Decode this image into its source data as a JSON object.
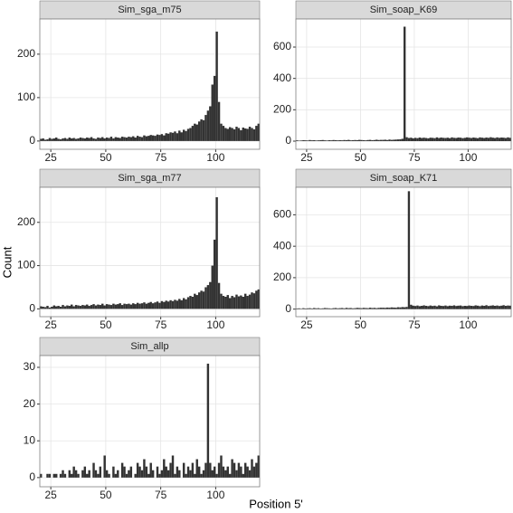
{
  "chart_data": {
    "type": "histogram",
    "xlabel": "Position 5'",
    "ylabel": "Count",
    "bins": [
      20,
      21,
      22,
      23,
      24,
      25,
      26,
      27,
      28,
      29,
      30,
      31,
      32,
      33,
      34,
      35,
      36,
      37,
      38,
      39,
      40,
      41,
      42,
      43,
      44,
      45,
      46,
      47,
      48,
      49,
      50,
      51,
      52,
      53,
      54,
      55,
      56,
      57,
      58,
      59,
      60,
      61,
      62,
      63,
      64,
      65,
      66,
      67,
      68,
      69,
      70,
      71,
      72,
      73,
      74,
      75,
      76,
      77,
      78,
      79,
      80,
      81,
      82,
      83,
      84,
      85,
      86,
      87,
      88,
      89,
      90,
      91,
      92,
      93,
      94,
      95,
      96,
      97,
      98,
      99,
      100,
      101,
      102,
      103,
      104,
      105,
      106,
      107,
      108,
      109,
      110,
      111,
      112,
      113,
      114,
      115,
      116,
      117,
      118,
      119,
      120
    ],
    "xlim": [
      20,
      120
    ],
    "xticks": [
      25,
      50,
      75,
      100
    ],
    "color": "#333333",
    "grid": true,
    "panels": [
      {
        "title": "Sim_sga_m75",
        "ylim": [
          -19,
          281
        ],
        "yticks": [
          0,
          100,
          200
        ],
        "values": [
          5,
          6,
          3,
          4,
          7,
          5,
          6,
          8,
          5,
          4,
          6,
          7,
          5,
          8,
          6,
          7,
          5,
          6,
          8,
          7,
          6,
          8,
          7,
          9,
          6,
          5,
          8,
          7,
          9,
          6,
          8,
          7,
          10,
          6,
          9,
          8,
          7,
          10,
          9,
          8,
          10,
          9,
          11,
          8,
          12,
          10,
          9,
          13,
          11,
          12,
          14,
          13,
          12,
          15,
          14,
          16,
          13,
          18,
          17,
          20,
          19,
          22,
          18,
          24,
          20,
          26,
          23,
          28,
          30,
          35,
          40,
          38,
          45,
          50,
          48,
          60,
          70,
          80,
          130,
          150,
          252,
          90,
          40,
          35,
          30,
          28,
          32,
          30,
          27,
          33,
          30,
          25,
          31,
          29,
          28,
          33,
          30,
          27,
          35,
          40
        ]
      },
      {
        "title": "Sim_soap_K69",
        "ylim": [
          -52,
          779
        ],
        "yticks": [
          0,
          200,
          400,
          600
        ],
        "values": [
          5,
          3,
          4,
          6,
          5,
          4,
          7,
          5,
          6,
          4,
          5,
          6,
          7,
          5,
          4,
          6,
          5,
          7,
          6,
          5,
          6,
          5,
          7,
          6,
          8,
          5,
          6,
          7,
          6,
          8,
          7,
          6,
          5,
          7,
          8,
          6,
          7,
          9,
          7,
          8,
          8,
          9,
          7,
          10,
          8,
          9,
          10,
          11,
          12,
          15,
          730,
          25,
          20,
          22,
          18,
          21,
          19,
          23,
          20,
          22,
          20,
          18,
          22,
          21,
          19,
          24,
          20,
          23,
          21,
          20,
          22,
          19,
          24,
          21,
          20,
          23,
          22,
          19,
          21,
          24,
          22,
          20,
          23,
          21,
          19,
          24,
          22,
          20,
          23,
          21,
          25,
          22,
          20,
          24,
          21,
          23,
          22,
          20,
          24,
          21
        ]
      },
      {
        "title": "Sim_sga_m77",
        "ylim": [
          -18,
          281
        ],
        "yticks": [
          0,
          100,
          200
        ],
        "values": [
          6,
          5,
          4,
          7,
          3,
          5,
          8,
          6,
          7,
          5,
          9,
          6,
          8,
          7,
          10,
          6,
          9,
          8,
          7,
          9,
          8,
          10,
          7,
          9,
          11,
          8,
          10,
          9,
          12,
          8,
          11,
          10,
          9,
          12,
          10,
          11,
          13,
          9,
          12,
          11,
          12,
          10,
          13,
          11,
          14,
          12,
          13,
          15,
          12,
          14,
          16,
          13,
          15,
          17,
          14,
          18,
          16,
          19,
          17,
          20,
          18,
          21,
          19,
          23,
          20,
          25,
          22,
          27,
          30,
          28,
          35,
          32,
          38,
          42,
          40,
          50,
          55,
          62,
          100,
          160,
          258,
          60,
          35,
          30,
          28,
          32,
          25,
          30,
          27,
          33,
          29,
          31,
          28,
          35,
          30,
          33,
          38,
          36,
          42,
          45
        ]
      },
      {
        "title": "Sim_soap_K71",
        "ylim": [
          -48,
          775
        ],
        "yticks": [
          0,
          200,
          400,
          600
        ],
        "values": [
          4,
          5,
          3,
          6,
          4,
          5,
          6,
          4,
          7,
          5,
          6,
          4,
          5,
          7,
          6,
          5,
          4,
          6,
          7,
          5,
          6,
          7,
          5,
          8,
          6,
          7,
          5,
          6,
          8,
          7,
          6,
          8,
          7,
          6,
          9,
          7,
          8,
          6,
          8,
          9,
          9,
          8,
          10,
          9,
          11,
          10,
          9,
          12,
          11,
          13,
          12,
          14,
          750,
          28,
          22,
          20,
          23,
          19,
          21,
          24,
          21,
          19,
          23,
          20,
          22,
          18,
          24,
          21,
          20,
          23,
          19,
          22,
          21,
          24,
          20,
          22,
          23,
          19,
          21,
          20,
          23,
          21,
          20,
          24,
          22,
          19,
          23,
          21,
          25,
          20,
          22,
          24,
          21,
          23,
          20,
          22,
          25,
          21,
          23,
          22
        ]
      },
      {
        "title": "Sim_allp",
        "ylim": [
          -2.5,
          33.2
        ],
        "yticks": [
          0,
          10,
          20,
          30
        ],
        "values": [
          1,
          0,
          0,
          1,
          1,
          0,
          1,
          1,
          0,
          1,
          2,
          1,
          0,
          2,
          1,
          3,
          2,
          1,
          0,
          2,
          3,
          1,
          2,
          0,
          4,
          2,
          1,
          3,
          0,
          6,
          2,
          1,
          0,
          3,
          1,
          2,
          0,
          4,
          3,
          1,
          2,
          3,
          0,
          1,
          4,
          3,
          2,
          5,
          3,
          1,
          4,
          2,
          0,
          3,
          1,
          2,
          5,
          3,
          2,
          4,
          6,
          1,
          3,
          2,
          0,
          4,
          1,
          3,
          2,
          4,
          1,
          5,
          3,
          1,
          2,
          4,
          31,
          4,
          2,
          3,
          1,
          4,
          6,
          3,
          2,
          3,
          1,
          5,
          4,
          2,
          4,
          3,
          1,
          4,
          3,
          2,
          5,
          3,
          4,
          6
        ]
      }
    ]
  }
}
